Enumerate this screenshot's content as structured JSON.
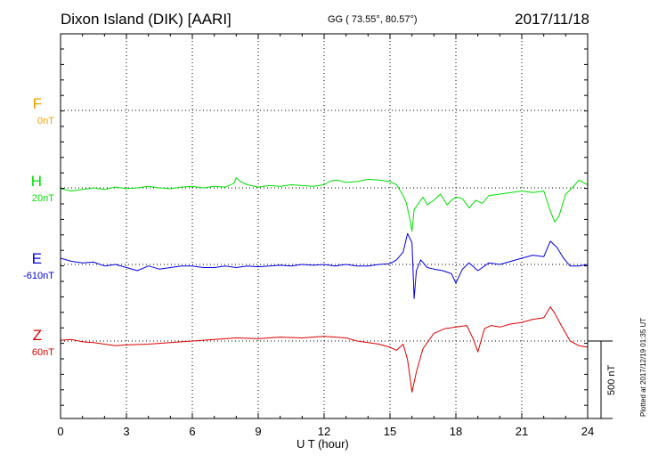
{
  "header": {
    "station": "Dixon Island (DIK)  [AARI]",
    "coords": "GG ( 73.55°,  80.57°)",
    "date": "2017/11/18"
  },
  "footer": {
    "plotted": "Plotted at 2017/12/19 01:35 UT"
  },
  "chart_data": {
    "type": "line",
    "xlabel": "U T (hour)",
    "xlim": [
      0,
      24
    ],
    "xticks": [
      "0",
      "3",
      "6",
      "9",
      "12",
      "15",
      "18",
      "21",
      "24"
    ],
    "grid": true,
    "scale_bar": "500 nT",
    "channels": [
      {
        "name": "F",
        "offset": "0nT",
        "color": "#f5a000"
      },
      {
        "name": "H",
        "offset": "20nT",
        "color": "#00e000"
      },
      {
        "name": "E",
        "offset": "-610nT",
        "color": "#0000dd"
      },
      {
        "name": "Z",
        "offset": "60nT",
        "color": "#dd0000"
      }
    ],
    "series": [
      {
        "name": "H",
        "color": "#00e000",
        "x": [
          0,
          0.5,
          1,
          1.5,
          2,
          2.5,
          3,
          3.5,
          4,
          4.5,
          5,
          5.5,
          6,
          6.5,
          7,
          7.5,
          7.9,
          8.0,
          8.2,
          8.5,
          9,
          9.5,
          10,
          10.5,
          11,
          11.5,
          12,
          12.3,
          12.6,
          13,
          13.5,
          14,
          14.5,
          15,
          15.3,
          15.6,
          15.75,
          15.9,
          16.0,
          16.1,
          16.3,
          16.5,
          16.7,
          17,
          17.3,
          17.6,
          17.8,
          18.0,
          18.3,
          18.6,
          18.9,
          19.2,
          19.5,
          20,
          20.5,
          21,
          21.5,
          22,
          22.3,
          22.5,
          22.7,
          23,
          23.3,
          23.6,
          24
        ],
        "values": [
          -5,
          -20,
          -10,
          0,
          -10,
          5,
          -5,
          0,
          10,
          0,
          -5,
          5,
          10,
          0,
          10,
          5,
          30,
          65,
          40,
          20,
          5,
          15,
          10,
          20,
          15,
          10,
          20,
          45,
          50,
          35,
          40,
          55,
          50,
          40,
          20,
          -50,
          -100,
          -200,
          -280,
          -140,
          -100,
          -60,
          -110,
          -80,
          -40,
          -110,
          -80,
          -60,
          -70,
          -130,
          -80,
          -100,
          -50,
          -40,
          -30,
          -20,
          -30,
          -20,
          -150,
          -220,
          -180,
          -40,
          0,
          50,
          20
        ]
      },
      {
        "name": "E",
        "color": "#0000dd",
        "x": [
          0,
          0.5,
          1,
          1.5,
          2,
          2.5,
          3,
          3.5,
          4,
          4.5,
          5,
          5.5,
          6,
          6.5,
          7,
          7.5,
          8,
          8.5,
          9,
          9.5,
          10,
          10.5,
          11,
          11.5,
          12,
          12.5,
          13,
          13.5,
          14,
          14.5,
          15,
          15.3,
          15.6,
          15.8,
          16.0,
          16.1,
          16.2,
          16.4,
          16.7,
          17,
          17.4,
          17.8,
          18.0,
          18.3,
          18.6,
          19,
          19.5,
          20,
          20.5,
          21,
          21.5,
          22,
          22.3,
          22.6,
          22.9,
          23.2,
          23.6,
          24
        ],
        "values": [
          40,
          20,
          10,
          15,
          -10,
          0,
          -20,
          -40,
          -10,
          -30,
          -20,
          -10,
          -10,
          -20,
          -20,
          -10,
          -20,
          -10,
          -15,
          -10,
          -5,
          -10,
          0,
          -5,
          0,
          -10,
          0,
          -10,
          -10,
          0,
          5,
          30,
          80,
          200,
          140,
          -220,
          -40,
          30,
          -20,
          -30,
          -40,
          -60,
          -120,
          -30,
          10,
          -40,
          10,
          0,
          20,
          40,
          60,
          50,
          150,
          110,
          40,
          -10,
          -10,
          0
        ]
      },
      {
        "name": "Z",
        "color": "#dd0000",
        "x": [
          0,
          0.5,
          1,
          1.5,
          2,
          2.5,
          3,
          4,
          5,
          6,
          7,
          8,
          9,
          10,
          11,
          12,
          12.5,
          13,
          13.5,
          14,
          14.5,
          15,
          15.3,
          15.6,
          15.8,
          16.0,
          16.2,
          16.5,
          17,
          17.5,
          18,
          18.5,
          18.8,
          19.0,
          19.3,
          19.6,
          20,
          20.5,
          21,
          21.5,
          22,
          22.3,
          22.5,
          22.8,
          23.2,
          23.6,
          24
        ],
        "values": [
          5,
          10,
          -5,
          -10,
          -20,
          -30,
          -25,
          -20,
          -10,
          0,
          10,
          20,
          15,
          25,
          20,
          30,
          25,
          20,
          0,
          -10,
          -20,
          -40,
          -60,
          -20,
          -120,
          -330,
          -200,
          -50,
          50,
          80,
          90,
          100,
          10,
          -70,
          80,
          100,
          90,
          110,
          120,
          140,
          150,
          220,
          180,
          100,
          0,
          -30,
          -40
        ]
      }
    ]
  }
}
